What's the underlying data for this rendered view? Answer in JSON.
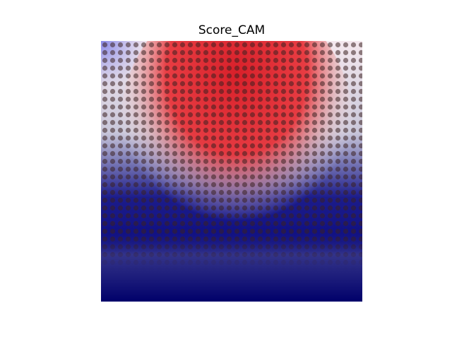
{
  "title": "Score_CAM"
}
